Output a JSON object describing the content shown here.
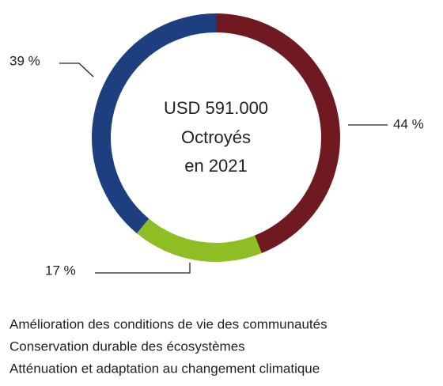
{
  "chart_data": {
    "type": "donut",
    "center_text": [
      "USD 591.000",
      "Octroyés",
      "en 2021"
    ],
    "categories": [
      "Amélioration des conditions de vie des communautés",
      "Conservation durable des écosystèmes",
      "Atténuation et adaptation au changement climatique"
    ],
    "values": [
      44,
      17,
      39
    ],
    "value_labels": [
      "44 %",
      "17 %",
      "39 %"
    ],
    "colors": [
      "#6e1a20",
      "#8fbd24",
      "#1d3f80"
    ]
  }
}
